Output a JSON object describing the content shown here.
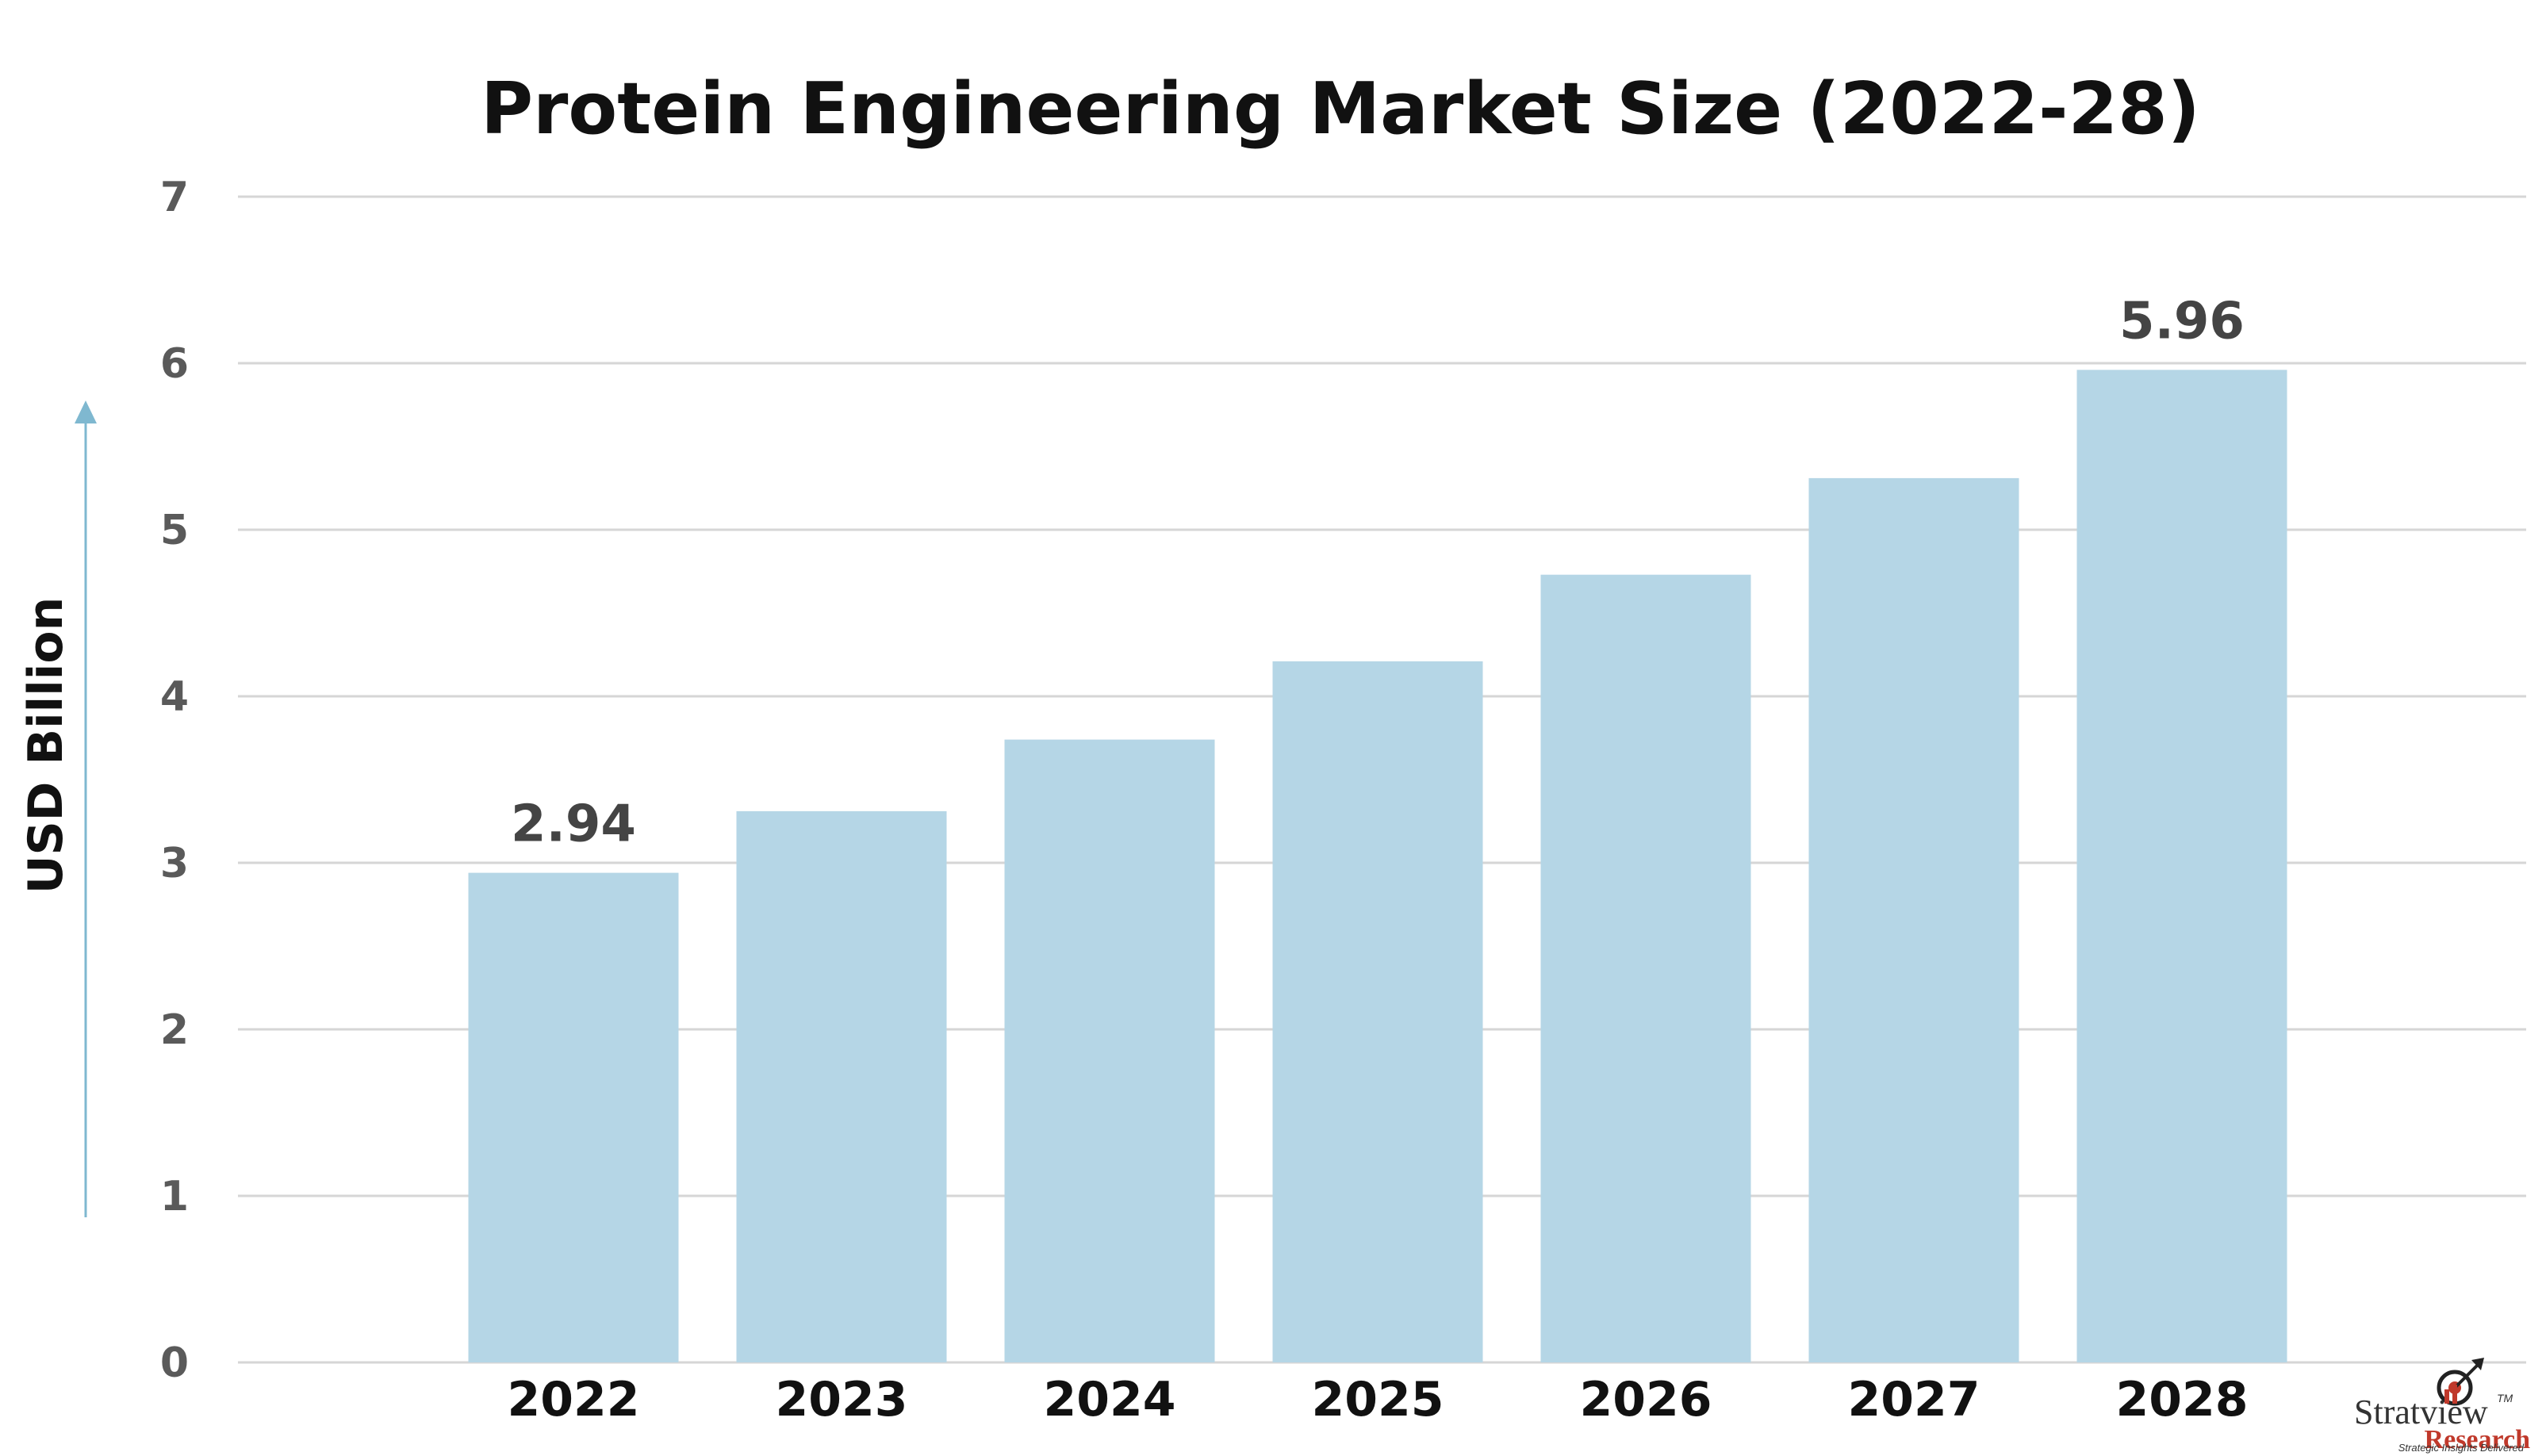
{
  "chart_data": {
    "type": "bar",
    "title": "Protein Engineering Market Size (2022-28)",
    "ylabel": "USD Billion",
    "xlabel": "",
    "categories": [
      "2022",
      "2023",
      "2024",
      "2025",
      "2026",
      "2027",
      "2028"
    ],
    "values": [
      2.94,
      3.31,
      3.74,
      4.21,
      4.73,
      5.31,
      5.96
    ],
    "data_labels": [
      "2.94",
      "",
      "",
      "",
      "",
      "",
      "5.96"
    ],
    "ylim": [
      0,
      7
    ],
    "yticks": [
      "0",
      "1",
      "2",
      "3",
      "4",
      "5",
      "6",
      "7"
    ],
    "grid": true,
    "bar_color": "#b5d6e6",
    "axis_arrow_color": "#7fb8d0"
  },
  "brand": {
    "name": "Stratview",
    "trademark": "TM",
    "sub": "Research",
    "tagline": "Strategic Insights Delivered"
  }
}
